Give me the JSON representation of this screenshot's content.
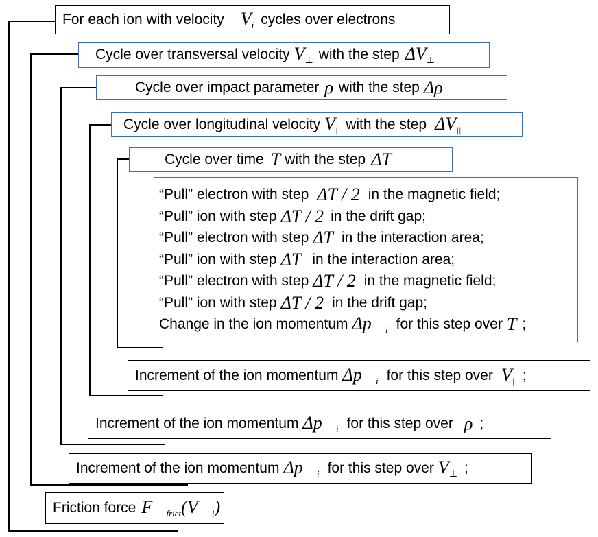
{
  "boxes": {
    "b1": {
      "text1": "For each ion with velocity",
      "math": "V",
      "sub": "i",
      "text2": "cycles over electrons"
    },
    "b2": {
      "text1": "Cycle over transversal velocity",
      "math": "V",
      "sub": "⊥",
      "text2": "with the step",
      "math2": "ΔV",
      "sub2": "⊥"
    },
    "b3": {
      "text1": "Cycle over impact parameter",
      "math": "ρ",
      "text2": "with the step",
      "math2": "Δρ"
    },
    "b4": {
      "text1": "Cycle over longitudinal velocity",
      "math": "V",
      "sub": "||",
      "text2": "with the step",
      "math2": "ΔV",
      "sub2": "||"
    },
    "b5": {
      "text1": "Cycle over time",
      "math": "T",
      "text2": "with the step",
      "math2": "ΔT"
    },
    "b6": {
      "lines": [
        {
          "pre": "“Pull” electron with step",
          "math": "ΔT / 2",
          "post": "in the magnetic field;"
        },
        {
          "pre": "“Pull” ion with step",
          "math": "ΔT / 2",
          "post": "in the drift gap;"
        },
        {
          "pre": "“Pull” electron with step",
          "math": "ΔT",
          "post": "in the interaction area;"
        },
        {
          "pre": "“Pull” ion with step",
          "math": "ΔT",
          "post": "in the interaction area;"
        },
        {
          "pre": "“Pull” electron with step",
          "math": "ΔT / 2",
          "post": "in the magnetic field;"
        },
        {
          "pre": "“Pull” ion with step",
          "math": "ΔT / 2",
          "post": "in the drift gap;"
        },
        {
          "pre": "Change in the ion momentum",
          "math": "Δp⃗",
          "sub": "i",
          "mid": "for this step over",
          "math2": "T",
          "post": ";"
        }
      ]
    },
    "b7": {
      "text1": "Increment of the ion momentum",
      "math": "Δp⃗",
      "sub": "i",
      "text2": "for this step over",
      "math2": "V",
      "sub2": "||",
      "text3": ";"
    },
    "b8": {
      "text1": "Increment of the ion momentum",
      "math": "Δp⃗",
      "sub": "i",
      "text2": "for this step over",
      "math2": "ρ",
      "text3": ";"
    },
    "b9": {
      "text1": "Increment of the ion momentum",
      "math": "Δp⃗",
      "sub": "i",
      "text2": "for this step over",
      "math2": "V",
      "sub2": "⊥",
      "text3": ";"
    },
    "b10": {
      "text1": "Friction force",
      "math": "F⃗",
      "sub": "frict",
      "math2": "(V⃗",
      "sub2": "i",
      "math3": ")"
    }
  },
  "colors": {
    "outer_border": "#000000",
    "inner_border": "#41719c",
    "line": "#000000"
  }
}
